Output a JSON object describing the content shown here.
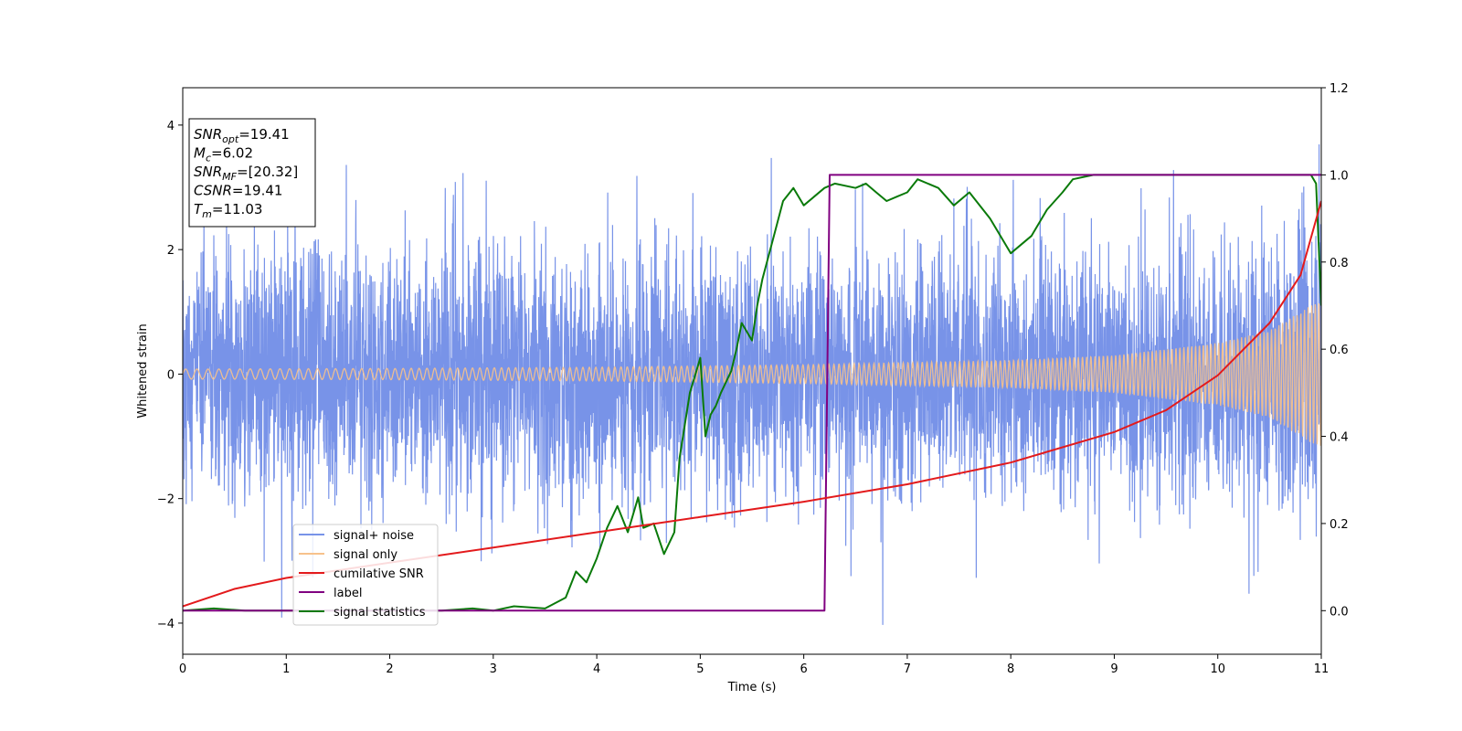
{
  "chart_data": {
    "type": "line",
    "xlabel": "Time (s)",
    "ylabel": "Whitened strain",
    "xlim": [
      0,
      11
    ],
    "ylim": [
      -4.5,
      4.6
    ],
    "y2lim": [
      -0.1,
      1.2
    ],
    "xticks": [
      "0",
      "1",
      "2",
      "3",
      "4",
      "5",
      "6",
      "7",
      "8",
      "9",
      "10",
      "11"
    ],
    "yticks": [
      "−4",
      "−2",
      "0",
      "2",
      "4"
    ],
    "y2ticks": [
      "0.0",
      "0.2",
      "0.4",
      "0.6",
      "0.8",
      "1.0",
      "1.2"
    ],
    "grid": false,
    "legend_position": "lower-left",
    "info_box": {
      "lines": [
        {
          "var": "SNR",
          "sub": "opt",
          "value": "=19.41"
        },
        {
          "var": "M",
          "sub": "c",
          "value": "=6.02"
        },
        {
          "var": "SNR",
          "sub": "MF",
          "value": "=[20.32]"
        },
        {
          "var": "CSNR",
          "sub": "",
          "value": "=19.41"
        },
        {
          "var": "T",
          "sub": "m",
          "value": "=11.03"
        }
      ]
    },
    "series": [
      {
        "name": "signal+ noise",
        "color": "#7893e8",
        "axis": "left",
        "kind": "noise",
        "noise_sigma": 1.0,
        "peak_max": 4.15,
        "peak_min": -4.1
      },
      {
        "name": "signal only",
        "color": "#f7c28b",
        "axis": "left",
        "kind": "chirp",
        "envelope": {
          "t": [
            0,
            2,
            4,
            6,
            8,
            9,
            10,
            10.5,
            11
          ],
          "amp": [
            0.08,
            0.09,
            0.11,
            0.15,
            0.22,
            0.3,
            0.5,
            0.7,
            1.2
          ]
        }
      },
      {
        "name": "cumilative SNR",
        "color": "#e31a1c",
        "axis": "right",
        "x": [
          0,
          0.5,
          1,
          2,
          3,
          4,
          5,
          6,
          7,
          8,
          9,
          9.5,
          10,
          10.5,
          10.8,
          11
        ],
        "y": [
          0.01,
          0.05,
          0.075,
          0.11,
          0.145,
          0.18,
          0.215,
          0.25,
          0.29,
          0.34,
          0.41,
          0.46,
          0.54,
          0.66,
          0.77,
          0.94
        ]
      },
      {
        "name": "label",
        "color": "#800080",
        "axis": "right",
        "x": [
          0,
          6.2,
          6.25,
          11
        ],
        "y": [
          0.0,
          0.0,
          1.0,
          1.0
        ]
      },
      {
        "name": "signal statistics",
        "color": "#0a7a0a",
        "axis": "right",
        "x": [
          0,
          0.3,
          0.6,
          1,
          1.5,
          2,
          2.5,
          2.8,
          3,
          3.2,
          3.5,
          3.7,
          3.8,
          3.9,
          4.0,
          4.1,
          4.2,
          4.3,
          4.4,
          4.45,
          4.55,
          4.65,
          4.75,
          4.8,
          4.9,
          5.0,
          5.05,
          5.1,
          5.15,
          5.2,
          5.3,
          5.35,
          5.4,
          5.5,
          5.55,
          5.6,
          5.7,
          5.8,
          5.9,
          6.0,
          6.1,
          6.2,
          6.3,
          6.5,
          6.6,
          6.7,
          6.8,
          6.9,
          7.0,
          7.1,
          7.3,
          7.45,
          7.6,
          7.8,
          8.0,
          8.2,
          8.35,
          8.5,
          8.6,
          8.8,
          9.0,
          9.5,
          10,
          10.5,
          10.9,
          10.95,
          11.0
        ],
        "y": [
          0.0,
          0.005,
          0.0,
          0.0,
          0.0,
          0.0,
          0.0,
          0.005,
          0.0,
          0.01,
          0.005,
          0.03,
          0.09,
          0.065,
          0.12,
          0.19,
          0.24,
          0.18,
          0.26,
          0.19,
          0.2,
          0.13,
          0.18,
          0.35,
          0.5,
          0.58,
          0.4,
          0.45,
          0.47,
          0.5,
          0.55,
          0.6,
          0.66,
          0.62,
          0.7,
          0.76,
          0.85,
          0.94,
          0.97,
          0.93,
          0.95,
          0.97,
          0.98,
          0.97,
          0.98,
          0.96,
          0.94,
          0.95,
          0.96,
          0.99,
          0.97,
          0.93,
          0.96,
          0.9,
          0.82,
          0.86,
          0.92,
          0.96,
          0.99,
          1.0,
          1.0,
          1.0,
          1.0,
          1.0,
          1.0,
          0.98,
          0.7
        ]
      }
    ]
  }
}
